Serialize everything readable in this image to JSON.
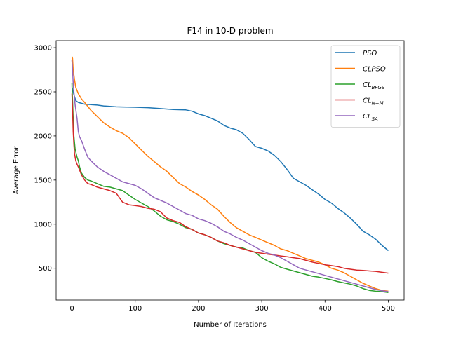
{
  "chart_data": {
    "type": "line",
    "title": "F14 in 10-D problem",
    "xlabel": "Number of Iterations",
    "ylabel": "Average Error",
    "xlim": [
      -25,
      525
    ],
    "ylim": [
      140,
      3080
    ],
    "xticks": [
      0,
      100,
      200,
      300,
      400,
      500
    ],
    "yticks": [
      500,
      1000,
      1500,
      2000,
      2500,
      3000
    ],
    "grid": false,
    "legend_position": "top-right",
    "series": [
      {
        "name": "PSO",
        "label_main": "PSO",
        "label_sub": "",
        "color": "#1f77b4",
        "x": [
          0,
          3,
          6,
          10,
          15,
          20,
          30,
          40,
          50,
          60,
          70,
          80,
          100,
          120,
          140,
          160,
          180,
          190,
          200,
          210,
          220,
          230,
          240,
          250,
          260,
          270,
          280,
          290,
          300,
          310,
          320,
          330,
          340,
          350,
          360,
          370,
          380,
          390,
          400,
          410,
          420,
          430,
          440,
          450,
          460,
          470,
          480,
          490,
          500
        ],
        "y": [
          2560,
          2470,
          2400,
          2380,
          2370,
          2360,
          2355,
          2350,
          2340,
          2335,
          2330,
          2328,
          2325,
          2320,
          2310,
          2300,
          2295,
          2280,
          2250,
          2230,
          2200,
          2170,
          2120,
          2090,
          2070,
          2030,
          1960,
          1880,
          1860,
          1830,
          1780,
          1710,
          1620,
          1520,
          1480,
          1440,
          1390,
          1340,
          1280,
          1240,
          1180,
          1130,
          1070,
          1000,
          920,
          880,
          830,
          760,
          700
        ]
      },
      {
        "name": "CLPSO",
        "label_main": "CLPSO",
        "label_sub": "",
        "color": "#ff7f0e",
        "x": [
          0,
          1,
          2,
          4,
          6,
          10,
          15,
          20,
          30,
          40,
          50,
          60,
          70,
          80,
          90,
          100,
          110,
          120,
          130,
          140,
          150,
          160,
          170,
          180,
          190,
          200,
          210,
          220,
          230,
          240,
          250,
          260,
          270,
          280,
          290,
          300,
          310,
          320,
          330,
          340,
          350,
          360,
          370,
          380,
          390,
          400,
          410,
          420,
          430,
          440,
          450,
          460,
          470,
          480,
          490,
          500
        ],
        "y": [
          2900,
          2880,
          2750,
          2640,
          2550,
          2480,
          2420,
          2380,
          2290,
          2220,
          2150,
          2100,
          2060,
          2030,
          1980,
          1910,
          1840,
          1770,
          1710,
          1650,
          1600,
          1530,
          1460,
          1420,
          1370,
          1330,
          1280,
          1220,
          1170,
          1090,
          1020,
          960,
          920,
          880,
          850,
          820,
          790,
          760,
          720,
          700,
          670,
          640,
          610,
          590,
          570,
          540,
          500,
          480,
          450,
          410,
          370,
          330,
          300,
          270,
          250,
          240
        ]
      },
      {
        "name": "CL_BFGS",
        "label_main": "CL",
        "label_sub": "BFGS",
        "color": "#2ca02c",
        "x": [
          0,
          1,
          2,
          3,
          5,
          8,
          10,
          12,
          15,
          20,
          25,
          30,
          40,
          50,
          60,
          70,
          80,
          90,
          100,
          110,
          120,
          130,
          140,
          150,
          160,
          170,
          180,
          190,
          200,
          210,
          220,
          230,
          240,
          250,
          260,
          270,
          280,
          290,
          300,
          310,
          320,
          330,
          340,
          350,
          360,
          370,
          380,
          390,
          400,
          410,
          420,
          430,
          440,
          450,
          460,
          470,
          480,
          490,
          500
        ],
        "y": [
          2600,
          2400,
          2200,
          2000,
          1850,
          1760,
          1720,
          1650,
          1580,
          1530,
          1500,
          1490,
          1460,
          1430,
          1420,
          1400,
          1380,
          1330,
          1280,
          1240,
          1200,
          1150,
          1090,
          1050,
          1030,
          1000,
          960,
          940,
          900,
          880,
          850,
          810,
          780,
          760,
          740,
          730,
          700,
          680,
          620,
          580,
          550,
          510,
          490,
          470,
          450,
          430,
          410,
          400,
          385,
          370,
          350,
          335,
          320,
          300,
          270,
          250,
          240,
          235,
          225
        ]
      },
      {
        "name": "CL_N-M",
        "label_main": "CL",
        "label_sub": "N−M",
        "color": "#d62728",
        "x": [
          0,
          1,
          2,
          3,
          4,
          6,
          8,
          10,
          15,
          20,
          25,
          30,
          40,
          50,
          60,
          70,
          80,
          90,
          100,
          110,
          120,
          130,
          140,
          150,
          160,
          170,
          180,
          190,
          200,
          210,
          220,
          230,
          240,
          250,
          260,
          270,
          280,
          290,
          300,
          310,
          320,
          330,
          340,
          350,
          360,
          370,
          380,
          390,
          400,
          410,
          420,
          430,
          440,
          450,
          460,
          470,
          480,
          490,
          500
        ],
        "y": [
          2480,
          2300,
          2050,
          1900,
          1800,
          1720,
          1680,
          1650,
          1560,
          1500,
          1460,
          1450,
          1420,
          1400,
          1380,
          1350,
          1250,
          1220,
          1210,
          1200,
          1180,
          1170,
          1140,
          1070,
          1040,
          1020,
          970,
          940,
          900,
          880,
          850,
          810,
          790,
          760,
          740,
          720,
          700,
          680,
          670,
          660,
          650,
          640,
          630,
          620,
          610,
          590,
          570,
          555,
          540,
          530,
          520,
          500,
          490,
          480,
          475,
          470,
          465,
          455,
          445
        ]
      },
      {
        "name": "CL_SA",
        "label_main": "CL",
        "label_sub": "SA",
        "color": "#9467bd",
        "x": [
          0,
          1,
          2,
          3,
          5,
          8,
          10,
          12,
          15,
          20,
          25,
          30,
          40,
          50,
          60,
          70,
          80,
          90,
          100,
          110,
          120,
          130,
          140,
          150,
          160,
          170,
          180,
          190,
          200,
          210,
          220,
          230,
          240,
          250,
          260,
          270,
          280,
          290,
          300,
          310,
          320,
          330,
          340,
          350,
          360,
          370,
          380,
          390,
          400,
          410,
          420,
          430,
          440,
          450,
          460,
          470,
          480,
          490,
          500
        ],
        "y": [
          2860,
          2750,
          2600,
          2500,
          2350,
          2200,
          2050,
          1990,
          1950,
          1850,
          1760,
          1720,
          1650,
          1600,
          1560,
          1520,
          1480,
          1460,
          1440,
          1400,
          1350,
          1300,
          1270,
          1240,
          1200,
          1160,
          1120,
          1100,
          1060,
          1040,
          1010,
          970,
          920,
          890,
          850,
          820,
          780,
          740,
          700,
          670,
          650,
          620,
          580,
          540,
          500,
          480,
          460,
          440,
          420,
          400,
          380,
          360,
          340,
          320,
          300,
          280,
          260,
          245,
          235
        ]
      }
    ]
  }
}
